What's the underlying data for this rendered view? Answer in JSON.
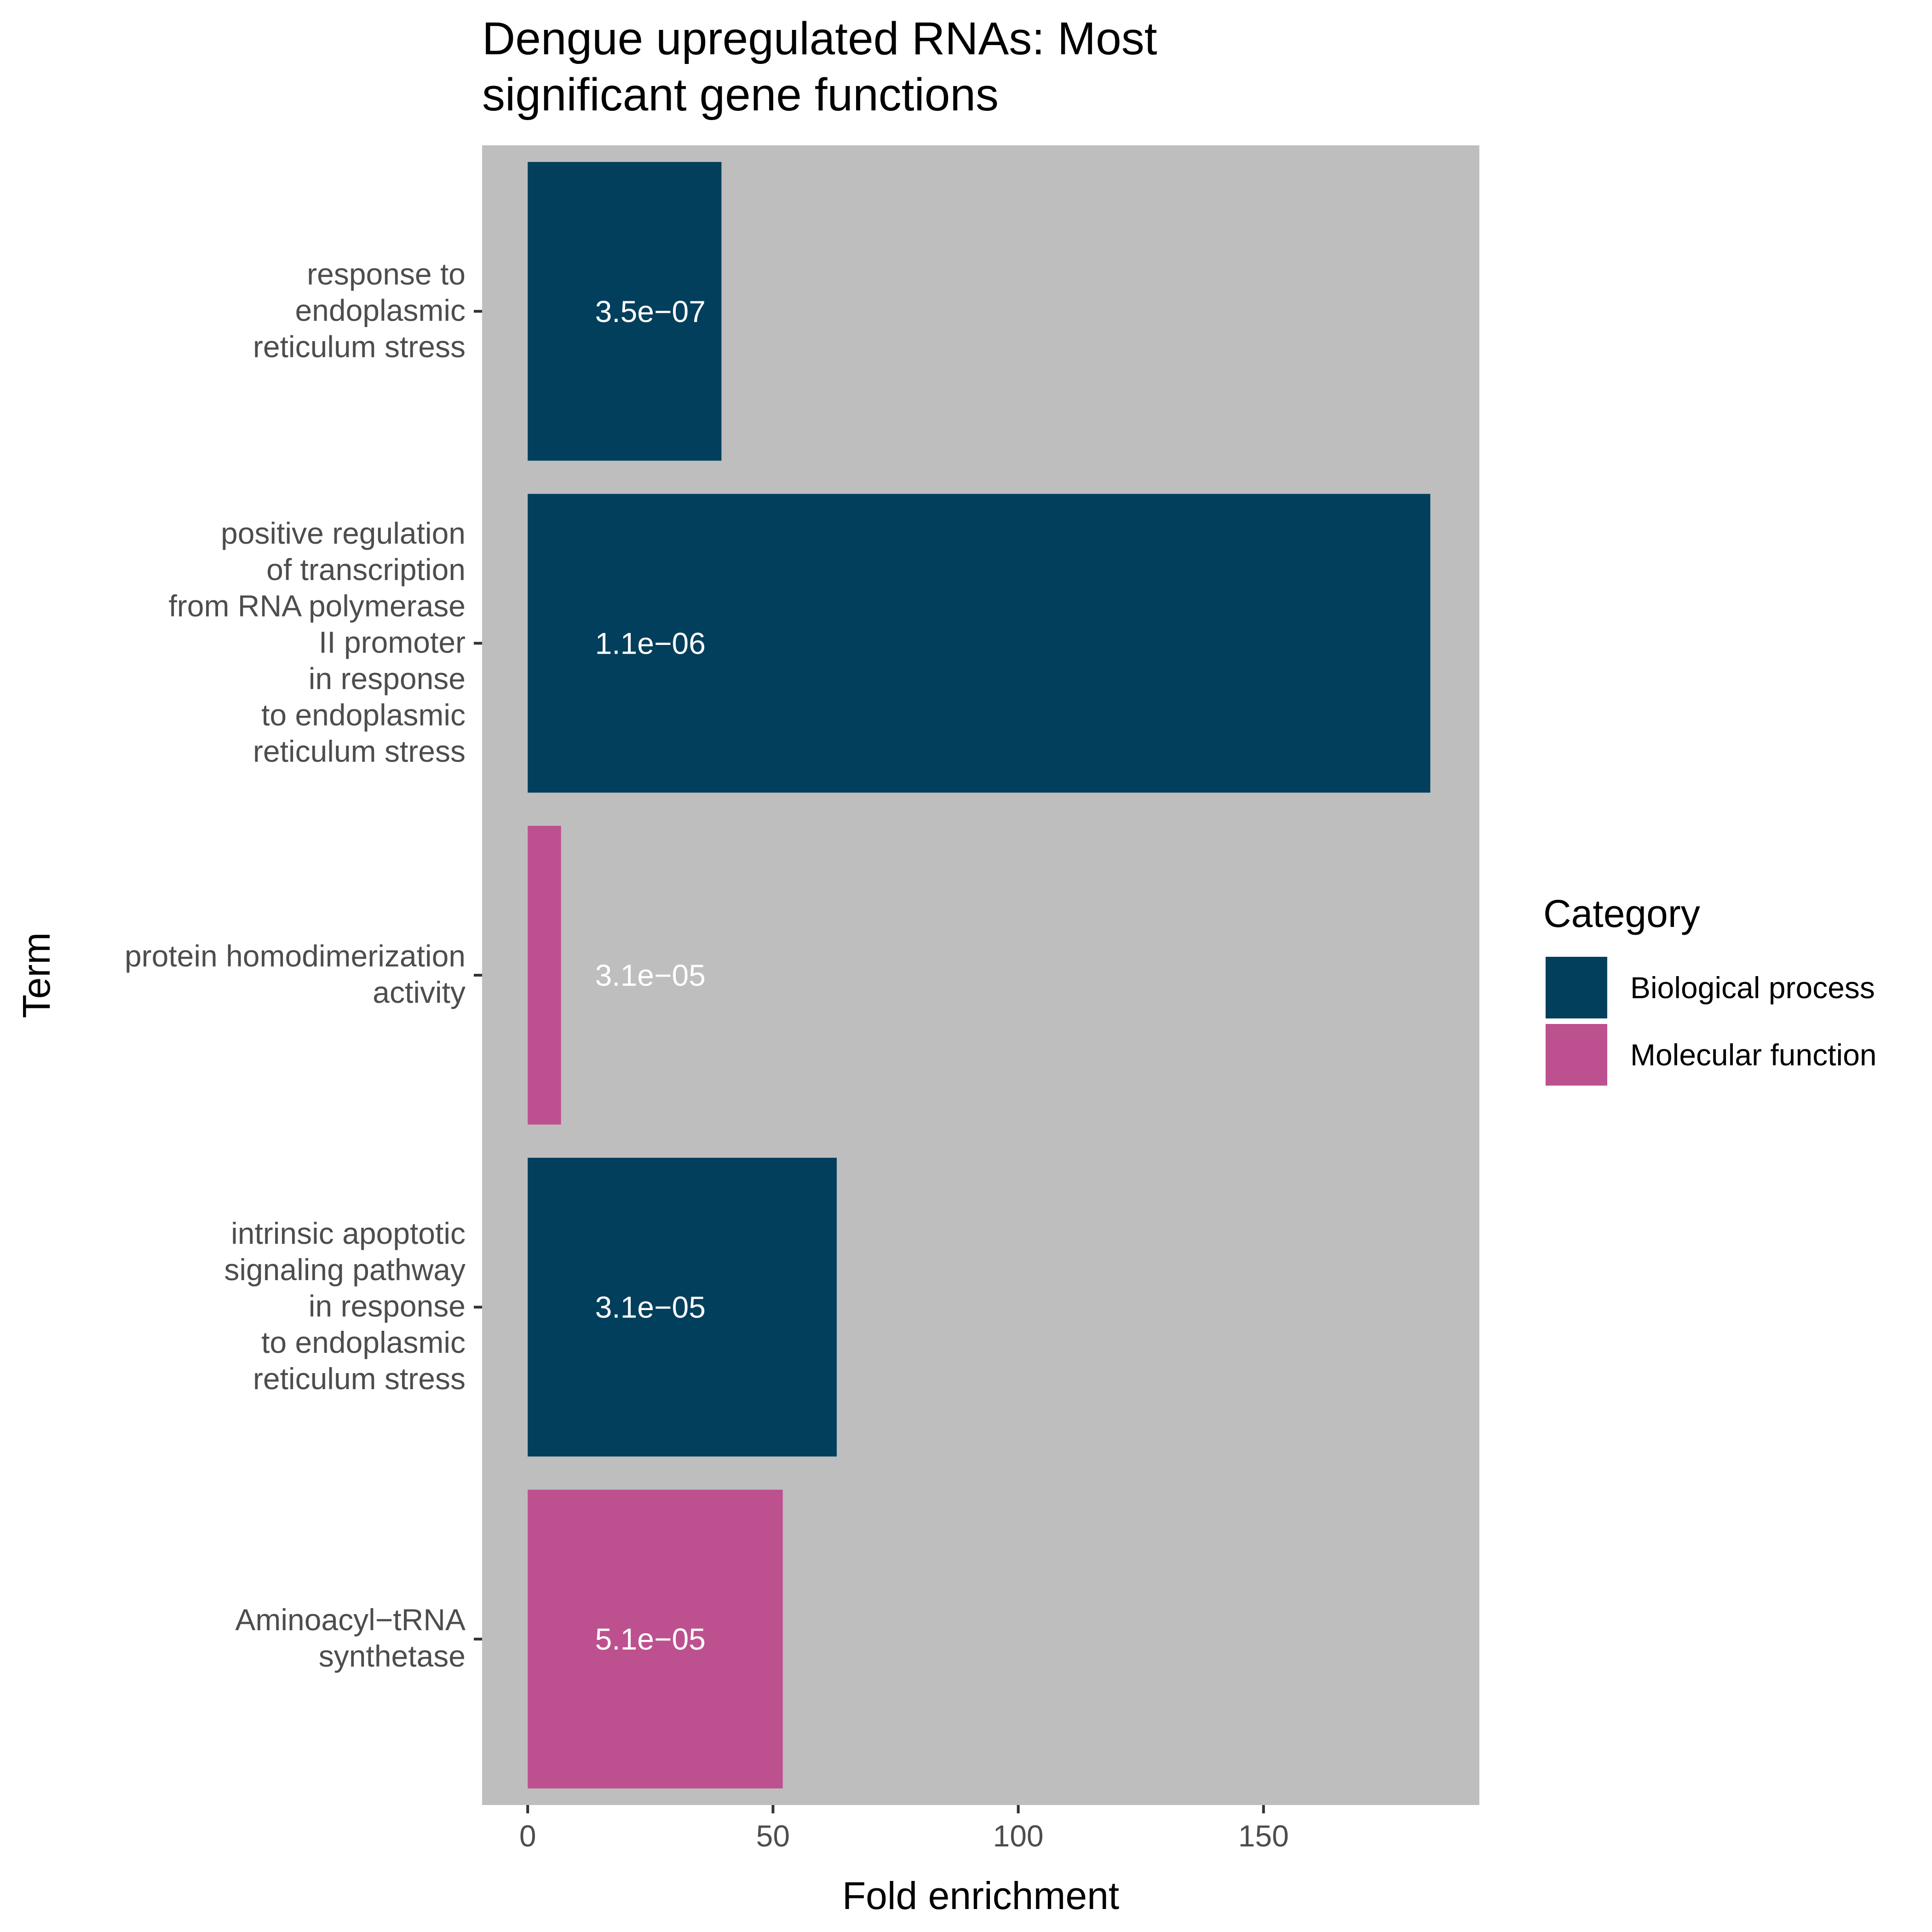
{
  "chart_data": {
    "type": "bar",
    "orientation": "horizontal",
    "title": [
      "Dengue upregulated RNAs: Most",
      "significant gene functions"
    ],
    "xlabel": "Fold enrichment",
    "ylabel": "Term",
    "xlim": [
      -9.3,
      194
    ],
    "xticks": [
      0,
      50,
      100,
      150
    ],
    "panel_background": "#bebebe",
    "grid": false,
    "legend": {
      "title": "Category",
      "position": "right",
      "entries": [
        {
          "name": "Biological process",
          "color": "#023f5c"
        },
        {
          "name": "Molecular function",
          "color": "#bd518f"
        }
      ]
    },
    "bars": [
      {
        "term_lines": [
          "response to",
          "endoplasmic",
          "reticulum stress"
        ],
        "value": 39.5,
        "category": "Biological process",
        "label": "3.5e−07"
      },
      {
        "term_lines": [
          "positive regulation",
          "of transcription",
          "from RNA polymerase",
          "II promoter",
          "in response",
          "to endoplasmic",
          "reticulum stress"
        ],
        "value": 184,
        "category": "Biological process",
        "label": "1.1e−06"
      },
      {
        "term_lines": [
          "protein homodimerization",
          "activity"
        ],
        "value": 6.8,
        "category": "Molecular function",
        "label": "3.1e−05"
      },
      {
        "term_lines": [
          "intrinsic apoptotic",
          "signaling pathway",
          "in response",
          "to endoplasmic",
          "reticulum stress"
        ],
        "value": 63,
        "category": "Biological process",
        "label": "3.1e−05"
      },
      {
        "term_lines": [
          "Aminoacyl−tRNA",
          "synthetase"
        ],
        "value": 52,
        "category": "Molecular function",
        "label": "5.1e−05"
      }
    ],
    "bar_label_x": 25
  }
}
